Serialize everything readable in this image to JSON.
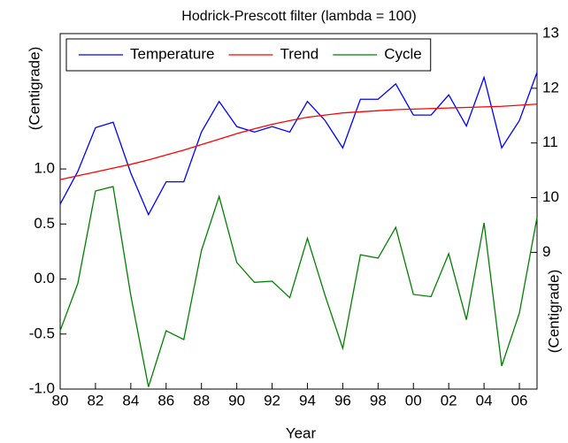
{
  "chart_data": {
    "type": "line",
    "title": "Hodrick-Prescott filter (lambda = 100)",
    "x_label": "Year",
    "y_label": "(Centigrade)",
    "y2_label": "(Centigrade)",
    "x": [
      1980,
      1981,
      1982,
      1983,
      1984,
      1985,
      1986,
      1987,
      1988,
      1989,
      1990,
      1991,
      1992,
      1993,
      1994,
      1995,
      1996,
      1997,
      1998,
      1999,
      2000,
      2001,
      2002,
      2003,
      2004,
      2005,
      2006,
      2007
    ],
    "series": [
      {
        "name": "Temperature",
        "color": "#0000ff",
        "axis": "y2",
        "values": [
          9.88,
          10.48,
          11.28,
          11.38,
          10.45,
          9.69,
          10.29,
          10.29,
          11.2,
          11.76,
          11.3,
          11.2,
          11.3,
          11.2,
          11.76,
          11.41,
          10.91,
          11.8,
          11.8,
          12.08,
          11.51,
          11.51,
          11.88,
          11.31,
          12.2,
          10.91,
          11.41,
          12.29
        ]
      },
      {
        "name": "Trend",
        "color": "#ff0000",
        "axis": "y2",
        "values": [
          10.33,
          10.4,
          10.47,
          10.54,
          10.61,
          10.69,
          10.78,
          10.87,
          10.97,
          11.07,
          11.17,
          11.26,
          11.34,
          11.41,
          11.47,
          11.51,
          11.55,
          11.57,
          11.59,
          11.61,
          11.62,
          11.63,
          11.64,
          11.65,
          11.66,
          11.67,
          11.69,
          11.71
        ]
      },
      {
        "name": "Cycle",
        "color": "#008000",
        "values": [
          -0.47,
          -0.04,
          0.8,
          0.84,
          -0.15,
          -0.98,
          -0.47,
          -0.55,
          0.26,
          0.75,
          0.15,
          -0.03,
          -0.02,
          -0.17,
          0.37,
          -0.15,
          -0.63,
          0.22,
          0.19,
          0.47,
          -0.14,
          -0.16,
          0.23,
          -0.37,
          0.51,
          -0.79,
          -0.31,
          0.56
        ]
      }
    ],
    "xlim": [
      1980,
      2007
    ],
    "xticks": [
      {
        "value": 1980,
        "label": "80"
      },
      {
        "value": 1982,
        "label": "82"
      },
      {
        "value": 1984,
        "label": "84"
      },
      {
        "value": 1986,
        "label": "86"
      },
      {
        "value": 1988,
        "label": "88"
      },
      {
        "value": 1990,
        "label": "90"
      },
      {
        "value": 1992,
        "label": "92"
      },
      {
        "value": 1994,
        "label": "94"
      },
      {
        "value": 1996,
        "label": "96"
      },
      {
        "value": 1998,
        "label": "98"
      },
      {
        "value": 2000,
        "label": "00"
      },
      {
        "value": 2002,
        "label": "02"
      },
      {
        "value": 2004,
        "label": "04"
      },
      {
        "value": 2006,
        "label": "06"
      }
    ],
    "ylim": [
      -1.0,
      2.23
    ],
    "yticks": [
      {
        "value": -1,
        "label": "-1.0"
      },
      {
        "value": -0.5,
        "label": "-0.5"
      },
      {
        "value": 0,
        "label": "0.0"
      },
      {
        "value": 0.5,
        "label": "0.5"
      },
      {
        "value": 1,
        "label": "1.0"
      }
    ],
    "y2lim": [
      6.5,
      13
    ],
    "y2ticks": [
      9,
      10,
      11,
      12,
      13
    ],
    "legend": "upper left"
  }
}
